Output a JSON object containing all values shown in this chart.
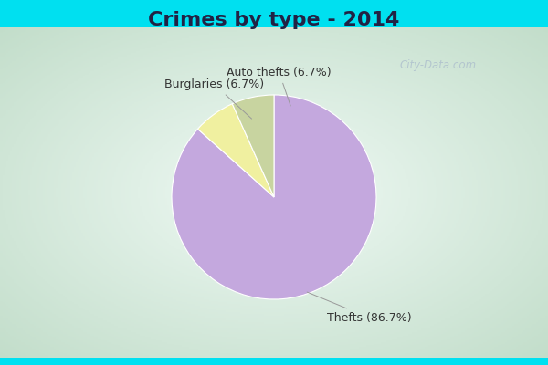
{
  "title": "Crimes by type - 2014",
  "slices": [
    {
      "label": "Thefts (86.7%)",
      "value": 86.7,
      "color": "#c4a8de"
    },
    {
      "label": "Auto thefts (6.7%)",
      "value": 6.7,
      "color": "#f0f0a0"
    },
    {
      "label": "Burglaries (6.7%)",
      "value": 6.7,
      "color": "#c8d4a0"
    }
  ],
  "background_top": "#00e0f0",
  "background_main_center": "#f0f8f8",
  "background_main_edge": "#c0dcc8",
  "title_fontsize": 16,
  "label_fontsize": 9,
  "watermark": "City-Data.com",
  "startangle": 90,
  "cyan_bar_height": 0.12,
  "title_color": "#222244"
}
